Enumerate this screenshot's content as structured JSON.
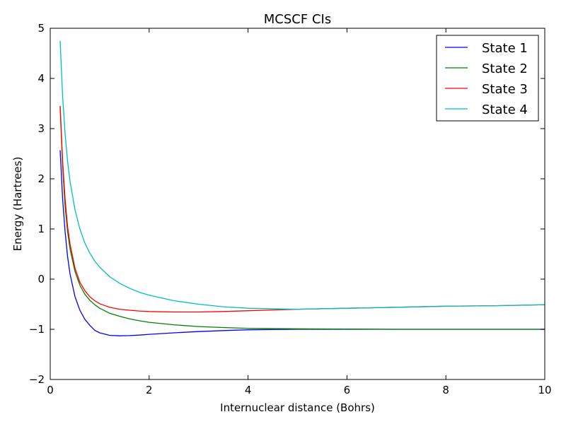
{
  "chart_data": {
    "type": "line",
    "title": "MCSCF CIs",
    "xlabel": "Internuclear distance (Bohrs)",
    "ylabel": "Energy (Hartrees)",
    "xlim": [
      0,
      10
    ],
    "ylim": [
      -2,
      5
    ],
    "xticks": [
      0,
      2,
      4,
      6,
      8,
      10
    ],
    "yticks": [
      -2,
      -1,
      0,
      1,
      2,
      3,
      4,
      5
    ],
    "grid": false,
    "legend_position": "top-right",
    "series": [
      {
        "name": "State 1",
        "color": "#0000ff",
        "x": [
          0.2,
          0.25,
          0.3,
          0.35,
          0.4,
          0.5,
          0.6,
          0.7,
          0.8,
          0.9,
          1.0,
          1.2,
          1.4,
          1.6,
          1.8,
          2.0,
          2.5,
          3.0,
          3.5,
          4.0,
          5.0,
          6.0,
          7.0,
          8.0,
          9.0,
          10.0
        ],
        "y": [
          2.57,
          1.6,
          0.95,
          0.45,
          0.1,
          -0.35,
          -0.62,
          -0.8,
          -0.92,
          -1.02,
          -1.07,
          -1.12,
          -1.13,
          -1.125,
          -1.115,
          -1.1,
          -1.07,
          -1.045,
          -1.025,
          -1.01,
          -1.0,
          -1.0,
          -1.0,
          -1.0,
          -1.0,
          -1.0
        ]
      },
      {
        "name": "State 2",
        "color": "#008000",
        "x": [
          0.2,
          0.25,
          0.3,
          0.35,
          0.4,
          0.5,
          0.6,
          0.7,
          0.8,
          0.9,
          1.0,
          1.2,
          1.4,
          1.6,
          1.8,
          2.0,
          2.5,
          3.0,
          3.5,
          4.0,
          5.0,
          6.0,
          7.0,
          8.0,
          9.0,
          10.0
        ],
        "y": [
          3.45,
          2.25,
          1.45,
          0.95,
          0.6,
          0.15,
          -0.12,
          -0.3,
          -0.42,
          -0.51,
          -0.58,
          -0.68,
          -0.74,
          -0.79,
          -0.83,
          -0.86,
          -0.91,
          -0.945,
          -0.965,
          -0.98,
          -0.99,
          -0.995,
          -1.0,
          -1.0,
          -1.0,
          -1.0
        ]
      },
      {
        "name": "State 3",
        "color": "#ff0000",
        "x": [
          0.2,
          0.25,
          0.3,
          0.35,
          0.4,
          0.5,
          0.6,
          0.7,
          0.8,
          0.9,
          1.0,
          1.2,
          1.4,
          1.6,
          1.8,
          2.0,
          2.5,
          3.0,
          3.5,
          4.0,
          5.0,
          6.0,
          7.0,
          8.0,
          9.0,
          10.0
        ],
        "y": [
          3.45,
          2.35,
          1.6,
          1.05,
          0.7,
          0.22,
          -0.06,
          -0.23,
          -0.35,
          -0.43,
          -0.49,
          -0.56,
          -0.6,
          -0.62,
          -0.635,
          -0.645,
          -0.655,
          -0.655,
          -0.645,
          -0.63,
          -0.6,
          -0.58,
          -0.56,
          -0.54,
          -0.53,
          -0.51
        ]
      },
      {
        "name": "State 4",
        "color": "#00bfbf",
        "x": [
          0.2,
          0.25,
          0.3,
          0.35,
          0.4,
          0.5,
          0.6,
          0.7,
          0.8,
          0.9,
          1.0,
          1.2,
          1.4,
          1.6,
          1.8,
          2.0,
          2.5,
          3.0,
          3.5,
          4.0,
          5.0,
          6.0,
          7.0,
          8.0,
          9.0,
          10.0
        ],
        "y": [
          4.75,
          3.65,
          2.9,
          2.35,
          1.95,
          1.38,
          1.0,
          0.72,
          0.52,
          0.36,
          0.24,
          0.05,
          -0.08,
          -0.18,
          -0.26,
          -0.32,
          -0.43,
          -0.5,
          -0.55,
          -0.58,
          -0.6,
          -0.58,
          -0.56,
          -0.54,
          -0.53,
          -0.51
        ]
      }
    ]
  }
}
